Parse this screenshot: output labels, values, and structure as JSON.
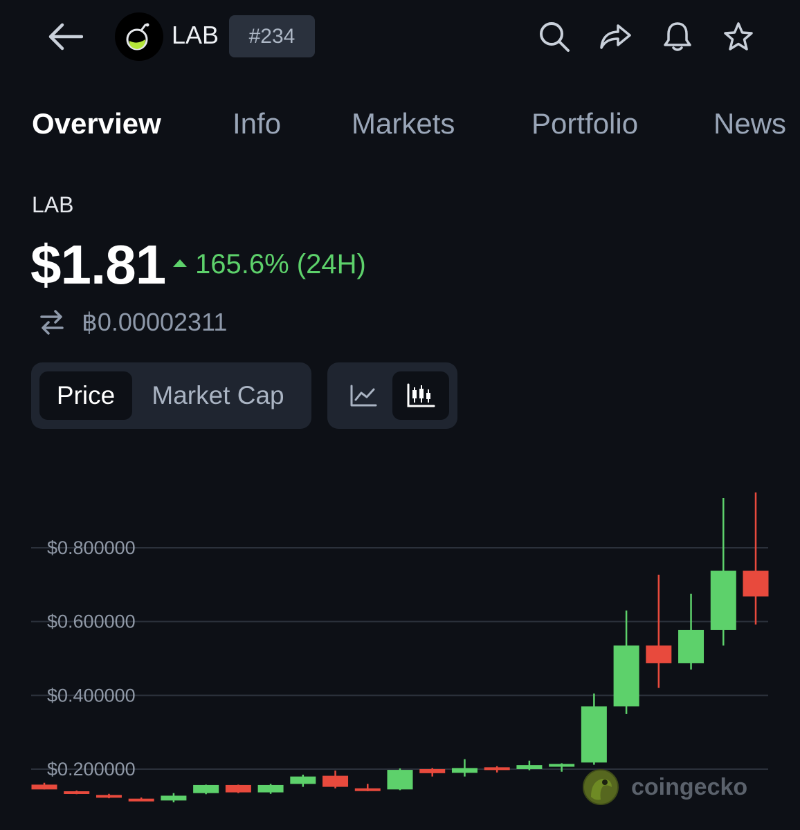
{
  "header": {
    "coin_name": "LAB",
    "rank": "#234",
    "icons": [
      "back-arrow-icon",
      "search-icon",
      "share-icon",
      "bell-icon",
      "star-icon"
    ]
  },
  "tabs": [
    "Overview",
    "Info",
    "Markets",
    "Portfolio",
    "News"
  ],
  "active_tab": "Overview",
  "summary": {
    "symbol": "LAB",
    "price": "$1.81",
    "change": "165.6% (24H)",
    "btc_price": "฿0.00002311"
  },
  "toggles": {
    "price_label": "Price",
    "market_cap_label": "Market Cap",
    "active_metric": "Price",
    "chart_types": [
      "line-chart-icon",
      "candlestick-chart-icon"
    ],
    "active_chart_type": "candlestick"
  },
  "colors": {
    "up": "#5dd16b",
    "down": "#e84a3d",
    "accent_change": "#5dd16b"
  },
  "watermark": "coingecko",
  "chart_data": {
    "type": "candlestick",
    "y_ticks": [
      "$0.800000",
      "$0.600000",
      "$0.400000",
      "$0.200000"
    ],
    "y_tick_values": [
      0.8,
      0.6,
      0.4,
      0.2
    ],
    "ylim": [
      0.1,
      0.95
    ],
    "grid": true,
    "candles": [
      {
        "o": 0.158,
        "h": 0.163,
        "l": 0.145,
        "c": 0.145,
        "dir": "down"
      },
      {
        "o": 0.14,
        "h": 0.142,
        "l": 0.132,
        "c": 0.134,
        "dir": "down"
      },
      {
        "o": 0.13,
        "h": 0.133,
        "l": 0.121,
        "c": 0.125,
        "dir": "down"
      },
      {
        "o": 0.12,
        "h": 0.123,
        "l": 0.116,
        "c": 0.117,
        "dir": "down"
      },
      {
        "o": 0.115,
        "h": 0.135,
        "l": 0.11,
        "c": 0.128,
        "dir": "up"
      },
      {
        "o": 0.135,
        "h": 0.158,
        "l": 0.132,
        "c": 0.157,
        "dir": "up"
      },
      {
        "o": 0.157,
        "h": 0.158,
        "l": 0.135,
        "c": 0.137,
        "dir": "down"
      },
      {
        "o": 0.137,
        "h": 0.16,
        "l": 0.133,
        "c": 0.157,
        "dir": "up"
      },
      {
        "o": 0.16,
        "h": 0.185,
        "l": 0.152,
        "c": 0.18,
        "dir": "up"
      },
      {
        "o": 0.182,
        "h": 0.196,
        "l": 0.148,
        "c": 0.152,
        "dir": "down"
      },
      {
        "o": 0.148,
        "h": 0.16,
        "l": 0.14,
        "c": 0.145,
        "dir": "down"
      },
      {
        "o": 0.145,
        "h": 0.202,
        "l": 0.143,
        "c": 0.198,
        "dir": "up"
      },
      {
        "o": 0.2,
        "h": 0.203,
        "l": 0.18,
        "c": 0.189,
        "dir": "down"
      },
      {
        "o": 0.19,
        "h": 0.227,
        "l": 0.18,
        "c": 0.203,
        "dir": "up"
      },
      {
        "o": 0.205,
        "h": 0.208,
        "l": 0.191,
        "c": 0.2,
        "dir": "down"
      },
      {
        "o": 0.2,
        "h": 0.223,
        "l": 0.197,
        "c": 0.211,
        "dir": "up"
      },
      {
        "o": 0.211,
        "h": 0.216,
        "l": 0.193,
        "c": 0.214,
        "dir": "up"
      },
      {
        "o": 0.218,
        "h": 0.405,
        "l": 0.212,
        "c": 0.37,
        "dir": "up"
      },
      {
        "o": 0.37,
        "h": 0.63,
        "l": 0.35,
        "c": 0.535,
        "dir": "up"
      },
      {
        "o": 0.535,
        "h": 0.727,
        "l": 0.42,
        "c": 0.487,
        "dir": "down"
      },
      {
        "o": 0.487,
        "h": 0.675,
        "l": 0.47,
        "c": 0.577,
        "dir": "up"
      },
      {
        "o": 0.577,
        "h": 0.935,
        "l": 0.535,
        "c": 0.738,
        "dir": "up"
      },
      {
        "o": 0.738,
        "h": 0.95,
        "l": 0.592,
        "c": 0.668,
        "dir": "down"
      }
    ]
  }
}
